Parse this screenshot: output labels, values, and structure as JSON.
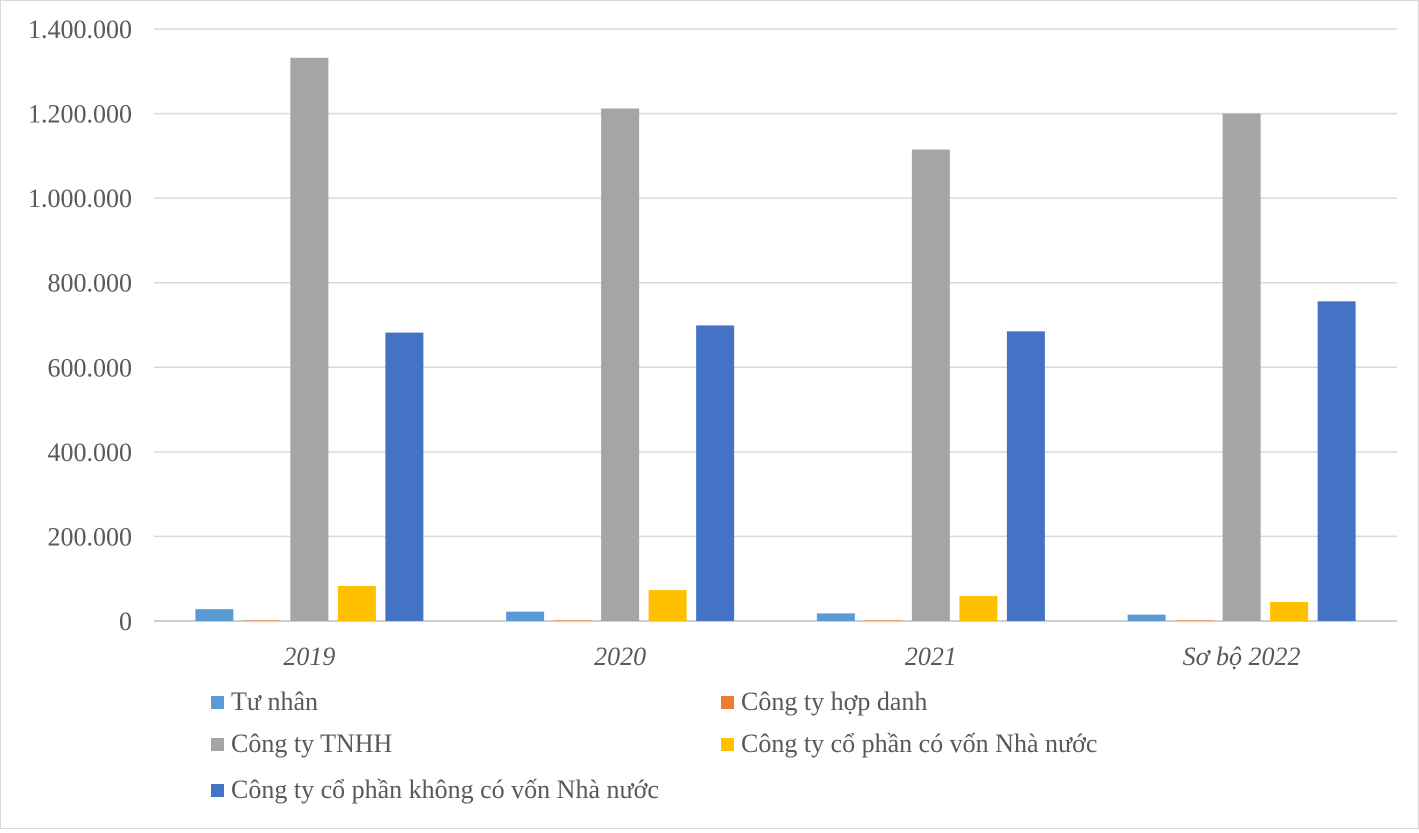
{
  "chart_data": {
    "type": "bar",
    "categories": [
      "2019",
      "2020",
      "2021",
      "Sơ bộ 2022"
    ],
    "series": [
      {
        "name": "Tư nhân",
        "color": "#5b9bd5",
        "values": [
          28000,
          22000,
          18000,
          15000
        ]
      },
      {
        "name": "Công ty hợp danh",
        "color": "#ed7d31",
        "values": [
          600,
          600,
          600,
          600
        ]
      },
      {
        "name": "Công ty TNHH",
        "color": "#a5a5a5",
        "values": [
          1332000,
          1212000,
          1115000,
          1200000
        ]
      },
      {
        "name": "Công ty cổ phần có vốn Nhà nước",
        "color": "#ffc000",
        "values": [
          83000,
          73000,
          59000,
          45000
        ]
      },
      {
        "name": "Công ty cổ phần không có vốn Nhà nước",
        "color": "#4472c4",
        "values": [
          682000,
          699000,
          685000,
          756000
        ]
      }
    ],
    "yticks": [
      "0",
      "200.000",
      "400.000",
      "600.000",
      "800.000",
      "1.000.000",
      "1.200.000",
      "1.400.000"
    ],
    "ylim": [
      0,
      1400000
    ],
    "grid": true,
    "legend_position": "bottom",
    "title": "",
    "xlabel": "",
    "ylabel": ""
  }
}
